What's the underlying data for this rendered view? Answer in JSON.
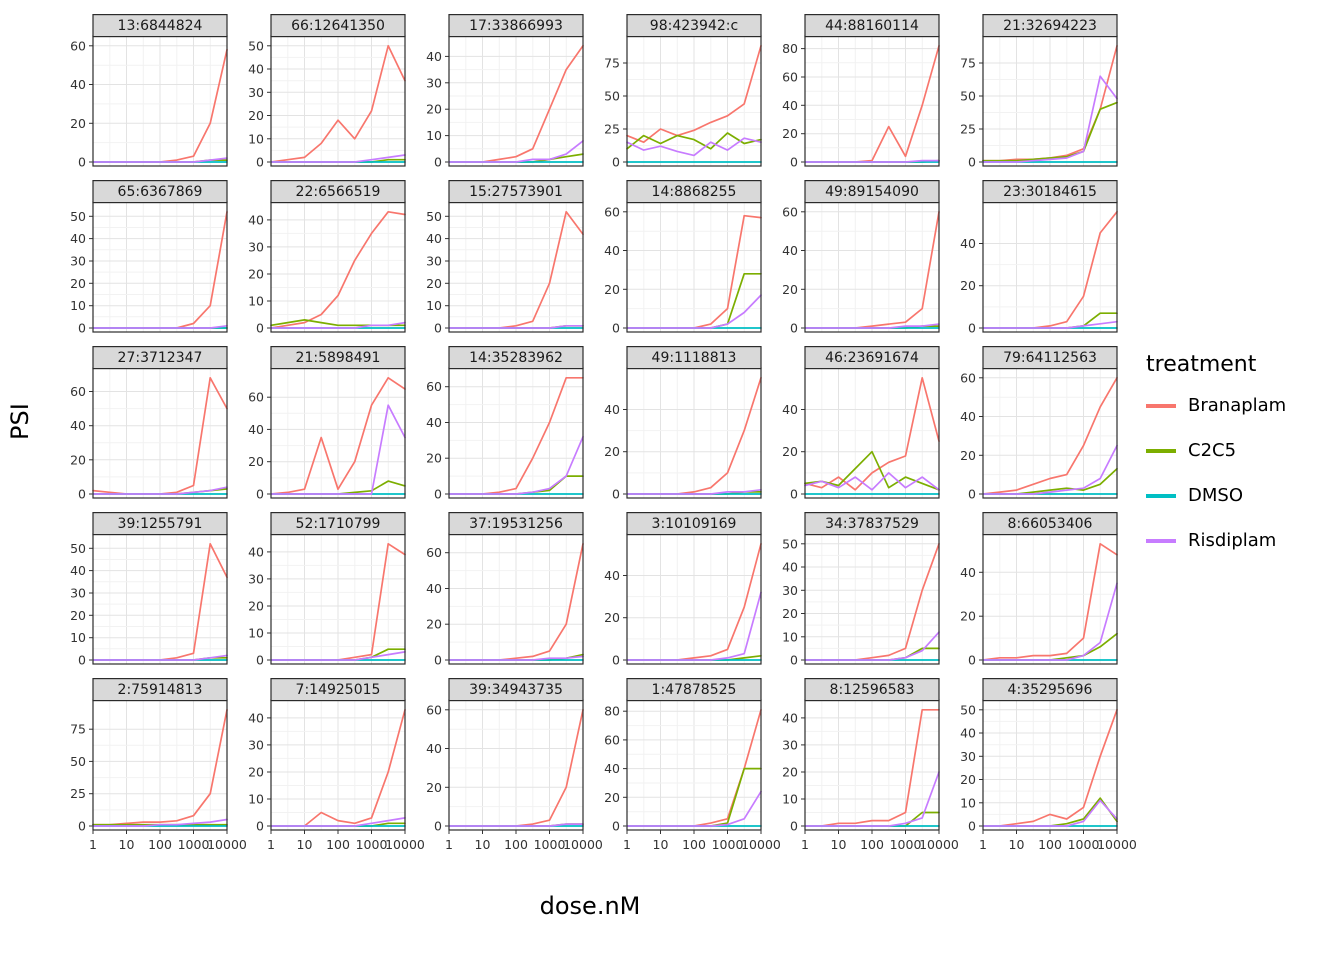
{
  "chart_data": {
    "type": "line",
    "title": "",
    "xlabel": "dose.nM",
    "ylabel": "PSI",
    "x_scale": "log10",
    "x": [
      1,
      3.16,
      10,
      31.6,
      100,
      316,
      1000,
      3160,
      10000
    ],
    "x_tick_labels": [
      "1",
      "10",
      "100",
      "1000",
      "10000"
    ],
    "grid": true,
    "legend": {
      "title": "treatment",
      "position": "right",
      "entries": [
        {
          "label": "Branaplam",
          "color": "#F8766D"
        },
        {
          "label": "C2C5",
          "color": "#7CAE00"
        },
        {
          "label": "DMSO",
          "color": "#00BFC4"
        },
        {
          "label": "Risdiplam",
          "color": "#C77CFF"
        }
      ]
    },
    "colors": {
      "b": "#F8766D",
      "c": "#7CAE00",
      "d": "#00BFC4",
      "r": "#C77CFF"
    },
    "dmso": [
      0,
      0,
      0,
      0,
      0,
      0,
      0,
      0,
      0
    ],
    "facets": [
      {
        "title": "13:6844824",
        "yt": [
          0,
          20,
          40,
          60
        ],
        "b": [
          0,
          0,
          0,
          0,
          0,
          1,
          3,
          20,
          58
        ],
        "c": [
          0,
          0,
          0,
          0,
          0,
          0,
          0,
          1,
          1
        ],
        "r": [
          0,
          0,
          0,
          0,
          0,
          0,
          0,
          1,
          2
        ]
      },
      {
        "title": "66:12641350",
        "yt": [
          0,
          10,
          20,
          30,
          40,
          50
        ],
        "b": [
          0,
          1,
          2,
          8,
          18,
          10,
          22,
          50,
          35
        ],
        "c": [
          0,
          0,
          0,
          0,
          0,
          0,
          0,
          1,
          1
        ],
        "r": [
          0,
          0,
          0,
          0,
          0,
          0,
          1,
          2,
          3
        ]
      },
      {
        "title": "17:33866993",
        "yt": [
          0,
          10,
          20,
          30,
          40
        ],
        "b": [
          0,
          0,
          0,
          1,
          2,
          5,
          20,
          35,
          44
        ],
        "c": [
          0,
          0,
          0,
          0,
          0,
          0,
          1,
          2,
          3
        ],
        "r": [
          0,
          0,
          0,
          0,
          0,
          1,
          1,
          3,
          8
        ]
      },
      {
        "title": "98:423942:c",
        "yt": [
          0,
          25,
          50,
          75
        ],
        "b": [
          20,
          15,
          25,
          20,
          24,
          30,
          35,
          44,
          88
        ],
        "c": [
          10,
          20,
          14,
          20,
          17,
          10,
          22,
          14,
          17
        ],
        "r": [
          15,
          9,
          12,
          8,
          5,
          15,
          9,
          18,
          15
        ]
      },
      {
        "title": "44:88160114",
        "yt": [
          0,
          20,
          40,
          60,
          80
        ],
        "b": [
          0,
          0,
          0,
          0,
          1,
          25,
          4,
          40,
          82
        ],
        "c": [
          0,
          0,
          0,
          0,
          0,
          0,
          0,
          0,
          1
        ],
        "r": [
          0,
          0,
          0,
          0,
          0,
          0,
          0,
          1,
          1
        ]
      },
      {
        "title": "21:32694223",
        "yt": [
          0,
          25,
          50,
          75
        ],
        "b": [
          1,
          1,
          2,
          2,
          3,
          5,
          10,
          40,
          88
        ],
        "c": [
          1,
          1,
          1,
          2,
          3,
          4,
          8,
          40,
          45
        ],
        "r": [
          0,
          0,
          0,
          1,
          2,
          3,
          8,
          65,
          48
        ]
      },
      {
        "title": "65:6367869",
        "yt": [
          0,
          10,
          20,
          30,
          40,
          50
        ],
        "b": [
          0,
          0,
          0,
          0,
          0,
          0,
          2,
          10,
          52
        ],
        "c": [
          0,
          0,
          0,
          0,
          0,
          0,
          0,
          0,
          0
        ],
        "r": [
          0,
          0,
          0,
          0,
          0,
          0,
          0,
          0,
          1
        ]
      },
      {
        "title": "22:6566519",
        "yt": [
          0,
          10,
          20,
          30,
          40
        ],
        "b": [
          0,
          1,
          2,
          5,
          12,
          25,
          35,
          43,
          42
        ],
        "c": [
          1,
          2,
          3,
          2,
          1,
          1,
          1,
          1,
          1
        ],
        "r": [
          0,
          0,
          0,
          0,
          0,
          0,
          1,
          1,
          2
        ]
      },
      {
        "title": "15:27573901",
        "yt": [
          0,
          10,
          20,
          30,
          40,
          50
        ],
        "b": [
          0,
          0,
          0,
          0,
          1,
          3,
          20,
          52,
          42
        ],
        "c": [
          0,
          0,
          0,
          0,
          0,
          0,
          0,
          1,
          1
        ],
        "r": [
          0,
          0,
          0,
          0,
          0,
          0,
          0,
          1,
          1
        ]
      },
      {
        "title": "14:8868255",
        "yt": [
          0,
          20,
          40,
          60
        ],
        "b": [
          0,
          0,
          0,
          0,
          0,
          2,
          10,
          58,
          57
        ],
        "c": [
          0,
          0,
          0,
          0,
          0,
          0,
          2,
          28,
          28
        ],
        "r": [
          0,
          0,
          0,
          0,
          0,
          0,
          2,
          8,
          17
        ]
      },
      {
        "title": "49:89154090",
        "yt": [
          0,
          20,
          40,
          60
        ],
        "b": [
          0,
          0,
          0,
          0,
          1,
          2,
          3,
          10,
          60
        ],
        "c": [
          0,
          0,
          0,
          0,
          0,
          0,
          0,
          1,
          1
        ],
        "r": [
          0,
          0,
          0,
          0,
          0,
          0,
          1,
          1,
          2
        ]
      },
      {
        "title": "23:30184615",
        "yt": [
          0,
          20,
          40
        ],
        "b": [
          0,
          0,
          0,
          0,
          1,
          3,
          15,
          45,
          55
        ],
        "c": [
          0,
          0,
          0,
          0,
          0,
          0,
          1,
          7,
          7
        ],
        "r": [
          0,
          0,
          0,
          0,
          0,
          0,
          1,
          2,
          3
        ]
      },
      {
        "title": "27:3712347",
        "yt": [
          0,
          20,
          40,
          60
        ],
        "b": [
          2,
          1,
          0,
          0,
          0,
          1,
          5,
          68,
          50
        ],
        "c": [
          0,
          0,
          0,
          0,
          0,
          0,
          1,
          2,
          3
        ],
        "r": [
          0,
          0,
          0,
          0,
          0,
          0,
          1,
          2,
          4
        ]
      },
      {
        "title": "21:5898491",
        "yt": [
          0,
          20,
          40,
          60
        ],
        "b": [
          0,
          1,
          3,
          35,
          3,
          20,
          55,
          72,
          65
        ],
        "c": [
          0,
          0,
          0,
          0,
          0,
          1,
          2,
          8,
          5
        ],
        "r": [
          0,
          0,
          0,
          0,
          0,
          0,
          0,
          55,
          35
        ]
      },
      {
        "title": "14:35283962",
        "yt": [
          0,
          20,
          40,
          60
        ],
        "b": [
          0,
          0,
          0,
          1,
          3,
          20,
          40,
          65,
          65
        ],
        "c": [
          0,
          0,
          0,
          0,
          0,
          1,
          2,
          10,
          10
        ],
        "r": [
          0,
          0,
          0,
          0,
          0,
          1,
          3,
          10,
          32
        ]
      },
      {
        "title": "49:1118813",
        "yt": [
          0,
          20,
          40
        ],
        "b": [
          0,
          0,
          0,
          0,
          1,
          3,
          10,
          30,
          55
        ],
        "c": [
          0,
          0,
          0,
          0,
          0,
          0,
          0,
          1,
          1
        ],
        "r": [
          0,
          0,
          0,
          0,
          0,
          0,
          1,
          1,
          2
        ]
      },
      {
        "title": "46:23691674",
        "yt": [
          0,
          20,
          40
        ],
        "b": [
          5,
          3,
          8,
          2,
          10,
          15,
          18,
          55,
          25
        ],
        "c": [
          5,
          6,
          4,
          12,
          20,
          3,
          8,
          5,
          2
        ],
        "r": [
          4,
          6,
          3,
          8,
          2,
          10,
          3,
          8,
          2
        ]
      },
      {
        "title": "79:64112563",
        "yt": [
          0,
          20,
          40,
          60
        ],
        "b": [
          0,
          1,
          2,
          5,
          8,
          10,
          25,
          45,
          60
        ],
        "c": [
          0,
          0,
          0,
          1,
          2,
          3,
          2,
          5,
          13
        ],
        "r": [
          0,
          0,
          0,
          0,
          1,
          2,
          3,
          8,
          25
        ]
      },
      {
        "title": "39:1255791",
        "yt": [
          0,
          10,
          20,
          30,
          40,
          50
        ],
        "b": [
          0,
          0,
          0,
          0,
          0,
          1,
          3,
          52,
          37
        ],
        "c": [
          0,
          0,
          0,
          0,
          0,
          0,
          0,
          1,
          1
        ],
        "r": [
          0,
          0,
          0,
          0,
          0,
          0,
          0,
          1,
          2
        ]
      },
      {
        "title": "52:1710799",
        "yt": [
          0,
          10,
          20,
          30,
          40
        ],
        "b": [
          0,
          0,
          0,
          0,
          0,
          1,
          2,
          43,
          39
        ],
        "c": [
          0,
          0,
          0,
          0,
          0,
          0,
          1,
          4,
          4
        ],
        "r": [
          0,
          0,
          0,
          0,
          0,
          0,
          1,
          2,
          3
        ]
      },
      {
        "title": "37:19531256",
        "yt": [
          0,
          20,
          40,
          60
        ],
        "b": [
          0,
          0,
          0,
          0,
          1,
          2,
          5,
          20,
          65
        ],
        "c": [
          0,
          0,
          0,
          0,
          0,
          0,
          0,
          1,
          3
        ],
        "r": [
          0,
          0,
          0,
          0,
          0,
          0,
          1,
          1,
          2
        ]
      },
      {
        "title": "3:10109169",
        "yt": [
          0,
          20,
          40
        ],
        "b": [
          0,
          0,
          0,
          0,
          1,
          2,
          5,
          25,
          55
        ],
        "c": [
          0,
          0,
          0,
          0,
          0,
          0,
          0,
          1,
          2
        ],
        "r": [
          0,
          0,
          0,
          0,
          0,
          0,
          1,
          3,
          32
        ]
      },
      {
        "title": "34:37837529",
        "yt": [
          0,
          10,
          20,
          30,
          40,
          50
        ],
        "b": [
          0,
          0,
          0,
          0,
          1,
          2,
          5,
          30,
          50
        ],
        "c": [
          0,
          0,
          0,
          0,
          0,
          0,
          1,
          5,
          5
        ],
        "r": [
          0,
          0,
          0,
          0,
          0,
          0,
          1,
          4,
          12
        ]
      },
      {
        "title": "8:66053406",
        "yt": [
          0,
          20,
          40
        ],
        "b": [
          0,
          1,
          1,
          2,
          2,
          3,
          10,
          53,
          48
        ],
        "c": [
          0,
          0,
          0,
          0,
          0,
          1,
          2,
          6,
          12
        ],
        "r": [
          0,
          0,
          0,
          0,
          0,
          0,
          2,
          8,
          35
        ]
      },
      {
        "title": "2:75914813",
        "yt": [
          0,
          25,
          50,
          75
        ],
        "b": [
          1,
          1,
          2,
          3,
          3,
          4,
          8,
          25,
          90
        ],
        "c": [
          1,
          1,
          1,
          1,
          1,
          1,
          1,
          1,
          1
        ],
        "r": [
          0,
          0,
          0,
          0,
          1,
          1,
          2,
          3,
          5
        ]
      },
      {
        "title": "7:14925015",
        "yt": [
          0,
          10,
          20,
          30,
          40
        ],
        "b": [
          0,
          0,
          0,
          5,
          2,
          1,
          3,
          20,
          43
        ],
        "c": [
          0,
          0,
          0,
          0,
          0,
          0,
          0,
          1,
          1
        ],
        "r": [
          0,
          0,
          0,
          0,
          0,
          0,
          1,
          2,
          3
        ]
      },
      {
        "title": "39:34943735",
        "yt": [
          0,
          20,
          40,
          60
        ],
        "b": [
          0,
          0,
          0,
          0,
          0,
          1,
          3,
          20,
          60
        ],
        "c": [
          0,
          0,
          0,
          0,
          0,
          0,
          0,
          1,
          1
        ],
        "r": [
          0,
          0,
          0,
          0,
          0,
          0,
          0,
          1,
          1
        ]
      },
      {
        "title": "1:47878525",
        "yt": [
          0,
          20,
          40,
          60,
          80
        ],
        "b": [
          0,
          0,
          0,
          0,
          0,
          2,
          5,
          40,
          81
        ],
        "c": [
          0,
          0,
          0,
          0,
          0,
          0,
          2,
          40,
          40
        ],
        "r": [
          0,
          0,
          0,
          0,
          0,
          0,
          1,
          5,
          24
        ]
      },
      {
        "title": "8:12596583",
        "yt": [
          0,
          10,
          20,
          30,
          40
        ],
        "b": [
          0,
          0,
          1,
          1,
          2,
          2,
          5,
          43,
          43
        ],
        "c": [
          0,
          0,
          0,
          0,
          0,
          0,
          0,
          5,
          5
        ],
        "r": [
          0,
          0,
          0,
          0,
          0,
          0,
          1,
          3,
          20
        ]
      },
      {
        "title": "4:35295696",
        "yt": [
          0,
          10,
          20,
          30,
          40,
          50
        ],
        "b": [
          0,
          0,
          1,
          2,
          5,
          3,
          8,
          30,
          50
        ],
        "c": [
          0,
          0,
          0,
          0,
          0,
          1,
          3,
          12,
          2
        ],
        "r": [
          0,
          0,
          0,
          0,
          0,
          0,
          2,
          11,
          3
        ]
      }
    ]
  }
}
